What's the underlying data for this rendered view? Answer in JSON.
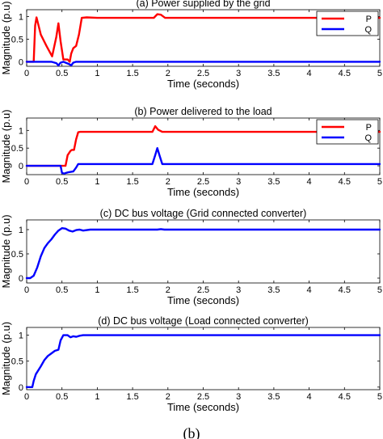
{
  "figure_caption": "(b)",
  "colors": {
    "p": "#ff0000",
    "q": "#0000ff",
    "axis": "#000000",
    "grid": "#d9d9d9"
  },
  "chart_data": [
    {
      "type": "line",
      "title": "(a) Power supplied by the grid",
      "xlabel": "Time (seconds)",
      "ylabel": "Magnitude (p.u)",
      "xlim": [
        0,
        5
      ],
      "ylim": [
        -0.1,
        1.15
      ],
      "xticks": [
        "0",
        "0.5",
        "1",
        "1.5",
        "2",
        "2.5",
        "3",
        "3.5",
        "4",
        "4.5",
        "5"
      ],
      "yticks": [
        "0",
        "0.5",
        "1"
      ],
      "legend": [
        "P",
        "Q"
      ],
      "legend_position": "top-right",
      "grid": false,
      "series": [
        {
          "name": "P",
          "color": "#ff0000",
          "x": [
            0.0,
            0.1,
            0.12,
            0.14,
            0.2,
            0.28,
            0.36,
            0.42,
            0.45,
            0.48,
            0.52,
            0.58,
            0.61,
            0.63,
            0.66,
            0.7,
            0.74,
            0.78,
            0.85,
            1.0,
            1.5,
            1.8,
            1.85,
            1.9,
            1.96,
            2.05,
            3.0,
            4.0,
            5.0
          ],
          "y": [
            0.0,
            0.0,
            0.8,
            0.98,
            0.6,
            0.35,
            0.12,
            0.55,
            0.85,
            0.45,
            0.05,
            0.05,
            0.0,
            0.18,
            0.3,
            0.35,
            0.6,
            0.97,
            0.98,
            0.97,
            0.97,
            0.97,
            1.05,
            1.04,
            0.97,
            0.97,
            0.97,
            0.97,
            0.97
          ]
        },
        {
          "name": "Q",
          "color": "#0000ff",
          "x": [
            0.0,
            0.35,
            0.42,
            0.45,
            0.48,
            0.52,
            0.6,
            0.63,
            0.66,
            0.7,
            1.0,
            2.0,
            3.0,
            4.0,
            5.0
          ],
          "y": [
            0.0,
            0.0,
            -0.03,
            -0.08,
            -0.02,
            0.0,
            -0.05,
            -0.08,
            -0.02,
            0.0,
            0.0,
            0.0,
            0.0,
            0.0,
            0.0
          ]
        }
      ]
    },
    {
      "type": "line",
      "title": "(b) Power delivered to the load",
      "xlabel": "Time (seconds)",
      "ylabel": "Magnitude (p.u)",
      "xlim": [
        0,
        5
      ],
      "ylim": [
        -0.25,
        1.35
      ],
      "xticks": [
        "0",
        "0.5",
        "1",
        "1.5",
        "2",
        "2.5",
        "3",
        "3.5",
        "4",
        "4.5",
        "5"
      ],
      "yticks": [
        "0",
        "0.5",
        "1"
      ],
      "legend": [
        "P",
        "Q"
      ],
      "legend_position": "top-right",
      "grid": false,
      "series": [
        {
          "name": "P",
          "color": "#ff0000",
          "x": [
            0.0,
            0.55,
            0.58,
            0.62,
            0.64,
            0.67,
            0.7,
            0.73,
            0.76,
            0.8,
            1.0,
            1.78,
            1.82,
            1.86,
            1.92,
            2.0,
            3.0,
            4.0,
            5.0
          ],
          "y": [
            0.0,
            0.0,
            0.3,
            0.42,
            0.45,
            0.45,
            0.75,
            0.95,
            0.96,
            0.96,
            0.96,
            0.96,
            1.12,
            1.02,
            0.96,
            0.96,
            0.96,
            0.96,
            0.96
          ]
        },
        {
          "name": "Q",
          "color": "#0000ff",
          "x": [
            0.0,
            0.48,
            0.5,
            0.53,
            0.56,
            0.6,
            0.66,
            0.7,
            0.73,
            0.76,
            0.8,
            1.0,
            1.78,
            1.82,
            1.85,
            1.88,
            1.92,
            2.0,
            3.0,
            4.0,
            5.0
          ],
          "y": [
            0.0,
            0.0,
            -0.2,
            -0.22,
            -0.2,
            -0.18,
            -0.16,
            -0.05,
            0.05,
            0.05,
            0.05,
            0.05,
            0.05,
            0.3,
            0.5,
            0.3,
            0.05,
            0.05,
            0.05,
            0.05,
            0.05
          ]
        }
      ]
    },
    {
      "type": "line",
      "title": "(c) DC bus voltage (Grid connected converter)",
      "xlabel": "Time (seconds)",
      "ylabel": "Magnitude (p.u)",
      "xlim": [
        0,
        5
      ],
      "ylim": [
        -0.1,
        1.2
      ],
      "xticks": [
        "0",
        "0.5",
        "1",
        "1.5",
        "2",
        "2.5",
        "3",
        "3.5",
        "4",
        "4.5",
        "5"
      ],
      "yticks": [
        "0",
        "0.5",
        "1"
      ],
      "grid": false,
      "series": [
        {
          "color": "#0000ff",
          "x": [
            0.0,
            0.05,
            0.1,
            0.15,
            0.2,
            0.25,
            0.3,
            0.35,
            0.4,
            0.45,
            0.5,
            0.55,
            0.6,
            0.65,
            0.7,
            0.75,
            0.8,
            0.9,
            1.0,
            1.5,
            1.85,
            1.9,
            1.95,
            2.0,
            3.0,
            4.0,
            5.0
          ],
          "y": [
            0.0,
            0.0,
            0.05,
            0.22,
            0.45,
            0.62,
            0.72,
            0.8,
            0.9,
            0.98,
            1.03,
            1.02,
            0.98,
            0.96,
            0.99,
            1.0,
            0.98,
            1.0,
            1.0,
            1.0,
            1.0,
            1.01,
            1.0,
            1.0,
            1.0,
            1.0,
            1.0
          ]
        }
      ]
    },
    {
      "type": "line",
      "title": "(d) DC bus voltage (Load connected converter)",
      "xlabel": "Time (seconds)",
      "ylabel": "Magnitude (p.u)",
      "xlim": [
        0,
        5
      ],
      "ylim": [
        -0.05,
        1.15
      ],
      "xticks": [
        "0",
        "0.5",
        "1",
        "1.5",
        "2",
        "2.5",
        "3",
        "3.5",
        "4",
        "4.5",
        "5"
      ],
      "yticks": [
        "0",
        "0.5",
        "1"
      ],
      "grid": false,
      "series": [
        {
          "color": "#0000ff",
          "x": [
            0.0,
            0.08,
            0.1,
            0.13,
            0.2,
            0.25,
            0.3,
            0.35,
            0.4,
            0.45,
            0.48,
            0.52,
            0.58,
            0.62,
            0.66,
            0.7,
            0.75,
            0.8,
            0.9,
            1.0,
            1.5,
            2.0,
            3.0,
            4.0,
            5.0
          ],
          "y": [
            0.0,
            0.0,
            0.12,
            0.25,
            0.4,
            0.52,
            0.6,
            0.65,
            0.7,
            0.72,
            0.9,
            1.0,
            1.0,
            0.96,
            0.98,
            0.97,
            0.99,
            1.0,
            1.0,
            1.0,
            1.0,
            1.0,
            1.0,
            1.0,
            1.0
          ]
        }
      ]
    }
  ]
}
